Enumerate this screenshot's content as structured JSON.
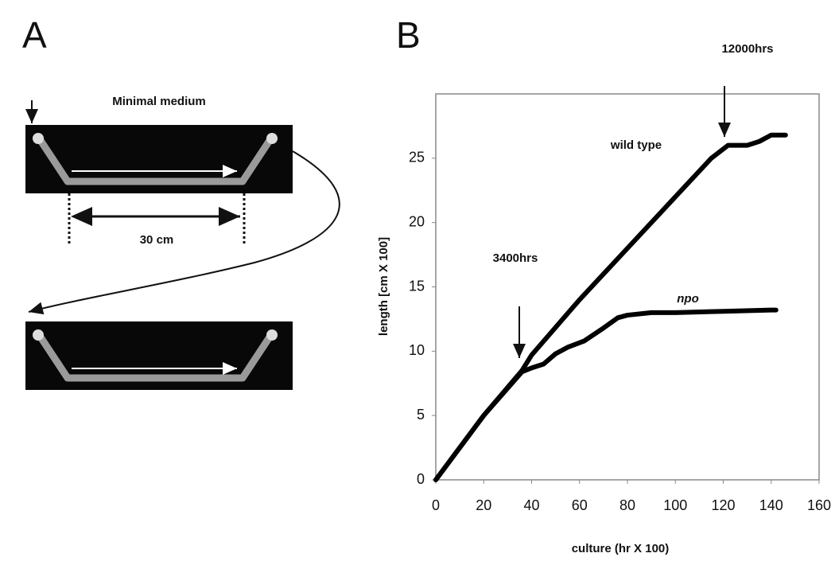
{
  "panel_a": {
    "label": "A",
    "title": "Minimal medium",
    "distance": "30 cm"
  },
  "chart_data": {
    "type": "line",
    "panel_label": "B",
    "xlabel": "culture (hr X 100)",
    "ylabel": "length [cm X 100]",
    "xlim": [
      0,
      160
    ],
    "xticks": [
      0,
      20,
      40,
      60,
      80,
      100,
      120,
      140,
      160
    ],
    "ylim": [
      0,
      30
    ],
    "yticks": [
      0,
      5,
      10,
      15,
      20,
      25
    ],
    "grid": false,
    "annotations": [
      "12000hrs",
      "3400hrs"
    ],
    "series": [
      {
        "name": "wild type",
        "color": "#000000",
        "x": [
          0,
          10,
          20,
          36,
          40,
          60,
          80,
          100,
          115,
          122,
          130,
          135,
          140,
          146
        ],
        "values": [
          0,
          2.5,
          5,
          8.5,
          9.7,
          14,
          18,
          22,
          25,
          26,
          26,
          26.3,
          26.8,
          26.8
        ]
      },
      {
        "name": "npo",
        "color": "#000000",
        "x": [
          0,
          20,
          36,
          40,
          45,
          50,
          55,
          62,
          70,
          76,
          80,
          90,
          100,
          120,
          140,
          142
        ],
        "values": [
          0,
          5,
          8.4,
          8.7,
          9,
          9.8,
          10.3,
          10.8,
          11.8,
          12.6,
          12.8,
          13,
          13,
          13.1,
          13.2,
          13.2
        ]
      }
    ]
  }
}
